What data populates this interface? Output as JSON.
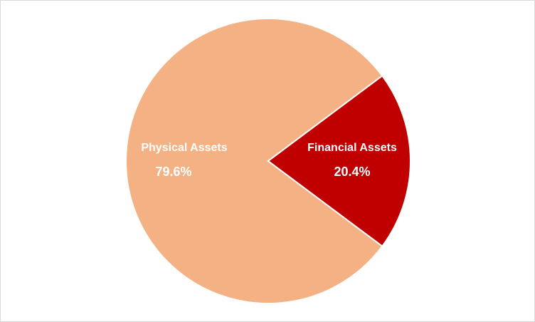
{
  "chart_data": {
    "type": "pie",
    "categories": [
      "Physical Assets",
      "Financial Assets"
    ],
    "values": [
      79.6,
      20.4
    ],
    "value_labels": [
      "79.6%",
      "20.4%"
    ],
    "colors": [
      "#f4b183",
      "#c00000"
    ]
  }
}
